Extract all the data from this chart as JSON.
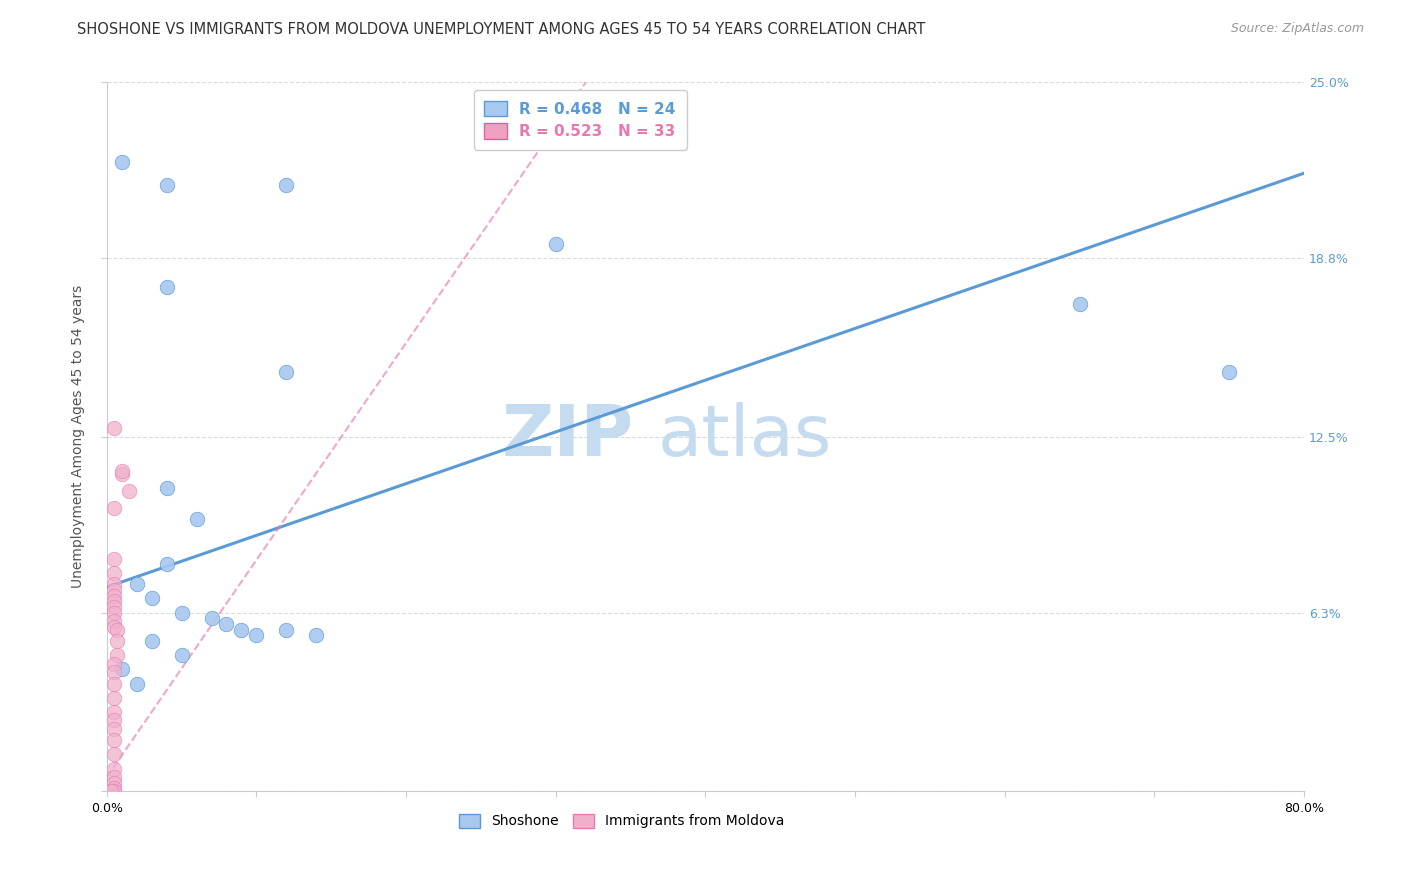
{
  "title": "SHOSHONE VS IMMIGRANTS FROM MOLDOVA UNEMPLOYMENT AMONG AGES 45 TO 54 YEARS CORRELATION CHART",
  "source": "Source: ZipAtlas.com",
  "ylabel": "Unemployment Among Ages 45 to 54 years",
  "watermark_zip": "ZIP",
  "watermark_atlas": "atlas",
  "xlim": [
    0.0,
    0.8
  ],
  "ylim": [
    0.0,
    0.25
  ],
  "yticks": [
    0.0,
    0.063,
    0.125,
    0.188,
    0.25
  ],
  "ytick_labels": [
    "",
    "6.3%",
    "12.5%",
    "18.8%",
    "25.0%"
  ],
  "xticks": [
    0.0,
    0.1,
    0.2,
    0.3,
    0.4,
    0.5,
    0.6,
    0.7,
    0.8
  ],
  "xtick_labels": [
    "0.0%",
    "",
    "",
    "",
    "",
    "",
    "",
    "",
    "80.0%"
  ],
  "legend_entries": [
    {
      "label": "R = 0.468   N = 24",
      "color": "#a8c8f0",
      "edge": "#5b9bd5"
    },
    {
      "label": "R = 0.523   N = 33",
      "color": "#f0a0c0",
      "edge": "#e060a0"
    }
  ],
  "shoshone_scatter": [
    [
      0.01,
      0.222
    ],
    [
      0.04,
      0.214
    ],
    [
      0.12,
      0.214
    ],
    [
      0.04,
      0.178
    ],
    [
      0.3,
      0.193
    ],
    [
      0.12,
      0.148
    ],
    [
      0.65,
      0.172
    ],
    [
      0.75,
      0.148
    ],
    [
      0.04,
      0.107
    ],
    [
      0.06,
      0.096
    ],
    [
      0.04,
      0.08
    ],
    [
      0.02,
      0.073
    ],
    [
      0.03,
      0.068
    ],
    [
      0.05,
      0.063
    ],
    [
      0.07,
      0.061
    ],
    [
      0.08,
      0.059
    ],
    [
      0.09,
      0.057
    ],
    [
      0.1,
      0.055
    ],
    [
      0.12,
      0.057
    ],
    [
      0.14,
      0.055
    ],
    [
      0.03,
      0.053
    ],
    [
      0.05,
      0.048
    ],
    [
      0.01,
      0.043
    ],
    [
      0.02,
      0.038
    ]
  ],
  "moldova_scatter": [
    [
      0.005,
      0.128
    ],
    [
      0.01,
      0.112
    ],
    [
      0.015,
      0.106
    ],
    [
      0.005,
      0.1
    ],
    [
      0.01,
      0.113
    ],
    [
      0.005,
      0.082
    ],
    [
      0.005,
      0.077
    ],
    [
      0.005,
      0.073
    ],
    [
      0.005,
      0.071
    ],
    [
      0.005,
      0.069
    ],
    [
      0.005,
      0.067
    ],
    [
      0.005,
      0.065
    ],
    [
      0.005,
      0.063
    ],
    [
      0.005,
      0.06
    ],
    [
      0.005,
      0.058
    ],
    [
      0.007,
      0.057
    ],
    [
      0.007,
      0.053
    ],
    [
      0.007,
      0.048
    ],
    [
      0.005,
      0.045
    ],
    [
      0.005,
      0.042
    ],
    [
      0.005,
      0.038
    ],
    [
      0.005,
      0.033
    ],
    [
      0.005,
      0.028
    ],
    [
      0.005,
      0.025
    ],
    [
      0.005,
      0.022
    ],
    [
      0.005,
      0.018
    ],
    [
      0.005,
      0.013
    ],
    [
      0.005,
      0.008
    ],
    [
      0.005,
      0.005
    ],
    [
      0.005,
      0.003
    ],
    [
      0.005,
      0.001
    ],
    [
      0.005,
      0.0
    ],
    [
      0.003,
      0.0
    ]
  ],
  "shoshone_line": {
    "x0": 0.0,
    "y0": 0.072,
    "x1": 0.8,
    "y1": 0.218
  },
  "moldova_line": {
    "x0": 0.0,
    "y0": 0.005,
    "x1": 0.32,
    "y1": 0.25
  },
  "shoshone_color": "#5b9bd5",
  "moldova_color": "#e878b0",
  "shoshone_marker_color": "#a8c8f0",
  "moldova_marker_color": "#f0b0cc",
  "grid_color": "#d8d8d8",
  "background_color": "#ffffff",
  "title_fontsize": 10.5,
  "source_fontsize": 9,
  "axis_label_fontsize": 10,
  "tick_fontsize": 9,
  "watermark_color_zip": "#c5dcf0",
  "watermark_color_atlas": "#c5dcf0",
  "legend_fontsize": 11
}
